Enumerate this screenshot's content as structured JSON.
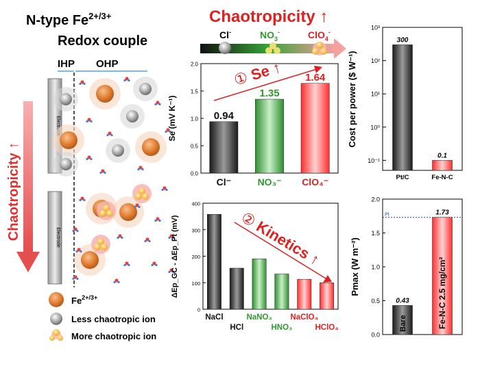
{
  "schematic": {
    "title_line1": "N-type Fe",
    "title_sup": "2+/3+",
    "title_line2": "Redox couple",
    "ihp_label": "IHP",
    "ohp_label": "OHP",
    "electrode_label": "Electrode",
    "chaotropicity_label": "Chaotropicity ↑",
    "legend": [
      {
        "label": "Fe",
        "sup": "2+/3+",
        "icon": "orange-sphere-icon"
      },
      {
        "label": "Less chaotropic ion",
        "icon": "gray-sphere-icon"
      },
      {
        "label": "More chaotropic ion",
        "icon": "yellow-cluster-icon"
      }
    ],
    "colors": {
      "fe": "#e07a2c",
      "less": "#9e9e9e",
      "more": "#f3b63a",
      "arrow": "#e85a5a"
    }
  },
  "header": {
    "chaotropicity_title": "Chaotropicity ↑",
    "gradient_ions": [
      {
        "label": "Cl",
        "sup": "-",
        "color": "#111111"
      },
      {
        "label": "NO",
        "sub": "3",
        "sup": "-",
        "color": "#2e9a2e"
      },
      {
        "label": "ClO",
        "sub": "4",
        "sup": "-",
        "color": "#e02020"
      }
    ]
  },
  "chart_data": [
    {
      "id": "seebeck",
      "type": "bar",
      "categories": [
        "Cl⁻",
        "NO₃⁻",
        "ClO₄⁻"
      ],
      "values": [
        0.94,
        1.35,
        1.64
      ],
      "value_labels": [
        "0.94",
        "1.35",
        "1.64"
      ],
      "colors": [
        "#444444",
        "#4cae4c",
        "#ff4d4d"
      ],
      "ylabel": "Se (mV K⁻¹)",
      "ylim": [
        0.0,
        2.0
      ],
      "yticks": [
        "0.0",
        "0.5",
        "1.0",
        "1.5",
        "2.0"
      ],
      "annotation": {
        "number": "①",
        "label": "Se",
        "arrow": "↑"
      }
    },
    {
      "id": "kinetics",
      "type": "bar",
      "categories": [
        "NaCl",
        "HCl",
        "NaNO₃",
        "HNO₃",
        "NaClO₄",
        "HClO₄"
      ],
      "values": [
        358,
        155,
        190,
        133,
        113,
        100
      ],
      "colors": [
        "#444444",
        "#444444",
        "#4cae4c",
        "#4cae4c",
        "#ff4d4d",
        "#ff4d4d"
      ],
      "label_colors": [
        "#111111",
        "#111111",
        "#2e9a2e",
        "#2e9a2e",
        "#e02020",
        "#e02020"
      ],
      "ylabel": "ΔEp_GC - ΔEp_Pt (mV)",
      "ylim": [
        0,
        400
      ],
      "yticks": [
        "0",
        "100",
        "200",
        "300",
        "400"
      ],
      "annotation": {
        "number": "②",
        "label": "Kinetics",
        "arrow": "↑"
      }
    },
    {
      "id": "cost",
      "type": "bar",
      "categories": [
        "Pt/C",
        "Fe-N-C"
      ],
      "values": [
        300,
        0.1
      ],
      "value_labels": [
        "300",
        "0.1"
      ],
      "colors": [
        "#444444",
        "#ff4d4d"
      ],
      "ylabel": "Cost per power ($ W⁻¹)",
      "yscale": "log",
      "ylim": [
        0.05,
        1000
      ],
      "yticks": [
        "10⁻¹",
        "10⁰",
        "10¹",
        "10²",
        "10³"
      ]
    },
    {
      "id": "pmax",
      "type": "bar",
      "categories": [
        "Bare",
        "Fe-N-C 2.5 mg/cm²"
      ],
      "values": [
        0.43,
        1.73
      ],
      "value_labels": [
        "0.43",
        "1.73"
      ],
      "colors": [
        "#444444",
        "#ff4d4d"
      ],
      "ylabel": "Pmax (W m⁻²)",
      "ylim": [
        0.0,
        2.0
      ],
      "yticks": [
        "0.0",
        "0.5",
        "1.0",
        "1.5",
        "2.0"
      ],
      "reference": {
        "label": "Pt",
        "value": 1.73,
        "color": "#1f3fd0"
      }
    }
  ]
}
